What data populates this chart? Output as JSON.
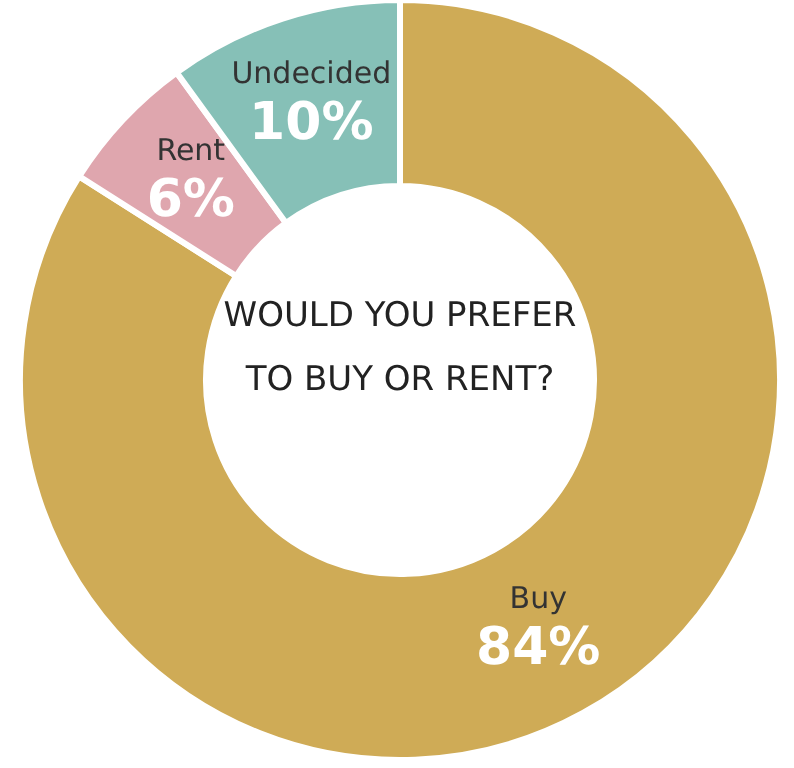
{
  "chart_data": {
    "type": "donut",
    "title": "WOULD YOU PREFER TO BUY OR RENT?",
    "categories": [
      "Buy",
      "Rent",
      "Undecided"
    ],
    "values": [
      84,
      6,
      10
    ],
    "colors": [
      "#cfab56",
      "#dfa6ae",
      "#86c0b7"
    ],
    "value_labels": [
      "84%",
      "6%",
      "10%"
    ],
    "legend": false
  }
}
